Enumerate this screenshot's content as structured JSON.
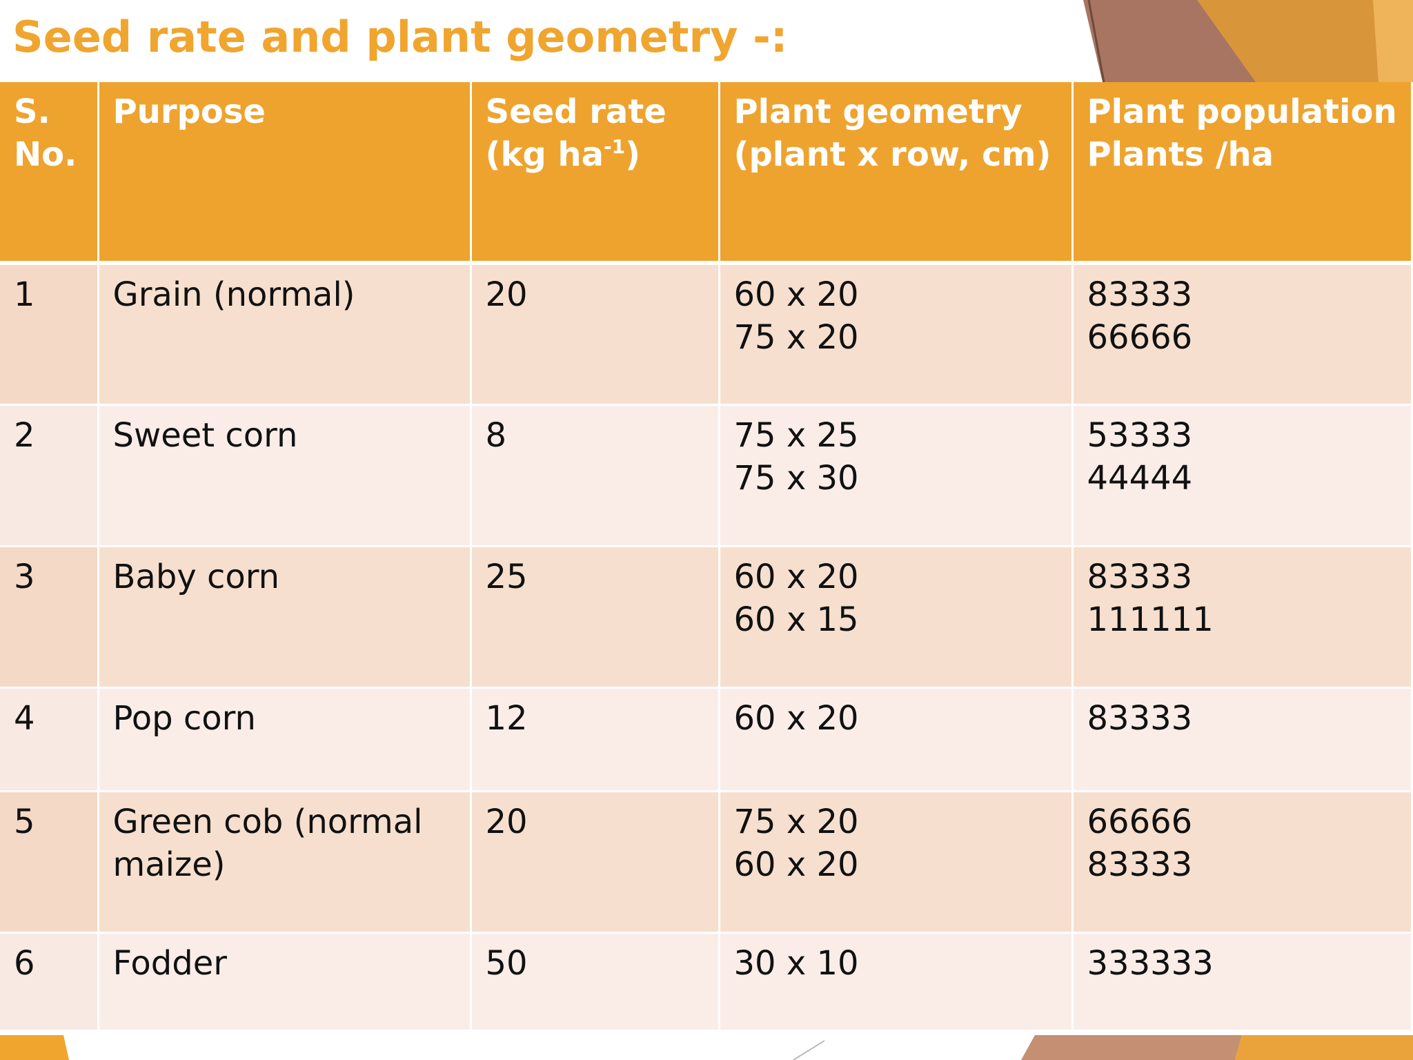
{
  "slide": {
    "title": "Seed rate and plant geometry -:"
  },
  "table": {
    "headers": {
      "sno": [
        "S.",
        "No."
      ],
      "purpose": "Purpose",
      "seed_rate": {
        "line1": "Seed rate",
        "line2_pre": "(kg ha",
        "line2_sup": "-1",
        "line2_post": ")"
      },
      "geometry": [
        "Plant geometry",
        "(plant x row, cm)"
      ],
      "population": [
        "Plant population",
        "Plants /ha"
      ]
    },
    "rows": [
      {
        "sno": "1",
        "purpose": "Grain (normal)",
        "seed_rate": "20",
        "geometry": [
          "60 x 20",
          "75 x 20"
        ],
        "population": [
          "83333",
          "66666"
        ]
      },
      {
        "sno": "2",
        "purpose": "Sweet corn",
        "seed_rate": "8",
        "geometry": [
          "75 x 25",
          "75 x 30"
        ],
        "population": [
          "53333",
          "44444"
        ]
      },
      {
        "sno": "3",
        "purpose": "Baby corn",
        "seed_rate": "25",
        "geometry": [
          "60 x 20",
          "60 x 15"
        ],
        "population": [
          "83333",
          "111111"
        ]
      },
      {
        "sno": "4",
        "purpose": "Pop corn",
        "seed_rate": "12",
        "geometry": [
          "60 x 20"
        ],
        "population": [
          "83333"
        ]
      },
      {
        "sno": "5",
        "purpose": "Green cob (normal maize)",
        "seed_rate": "20",
        "geometry": [
          "75 x 20",
          "60 x 20"
        ],
        "population": [
          "66666",
          "83333"
        ]
      },
      {
        "sno": "6",
        "purpose": "Fodder",
        "seed_rate": "50",
        "geometry": [
          "30 x 10"
        ],
        "population": [
          "333333"
        ]
      }
    ]
  },
  "colors": {
    "title": "#F0A52F",
    "header_bg": "#EEA32F",
    "row_odd": "#F6DFCE",
    "row_even": "#FAEDE8"
  }
}
